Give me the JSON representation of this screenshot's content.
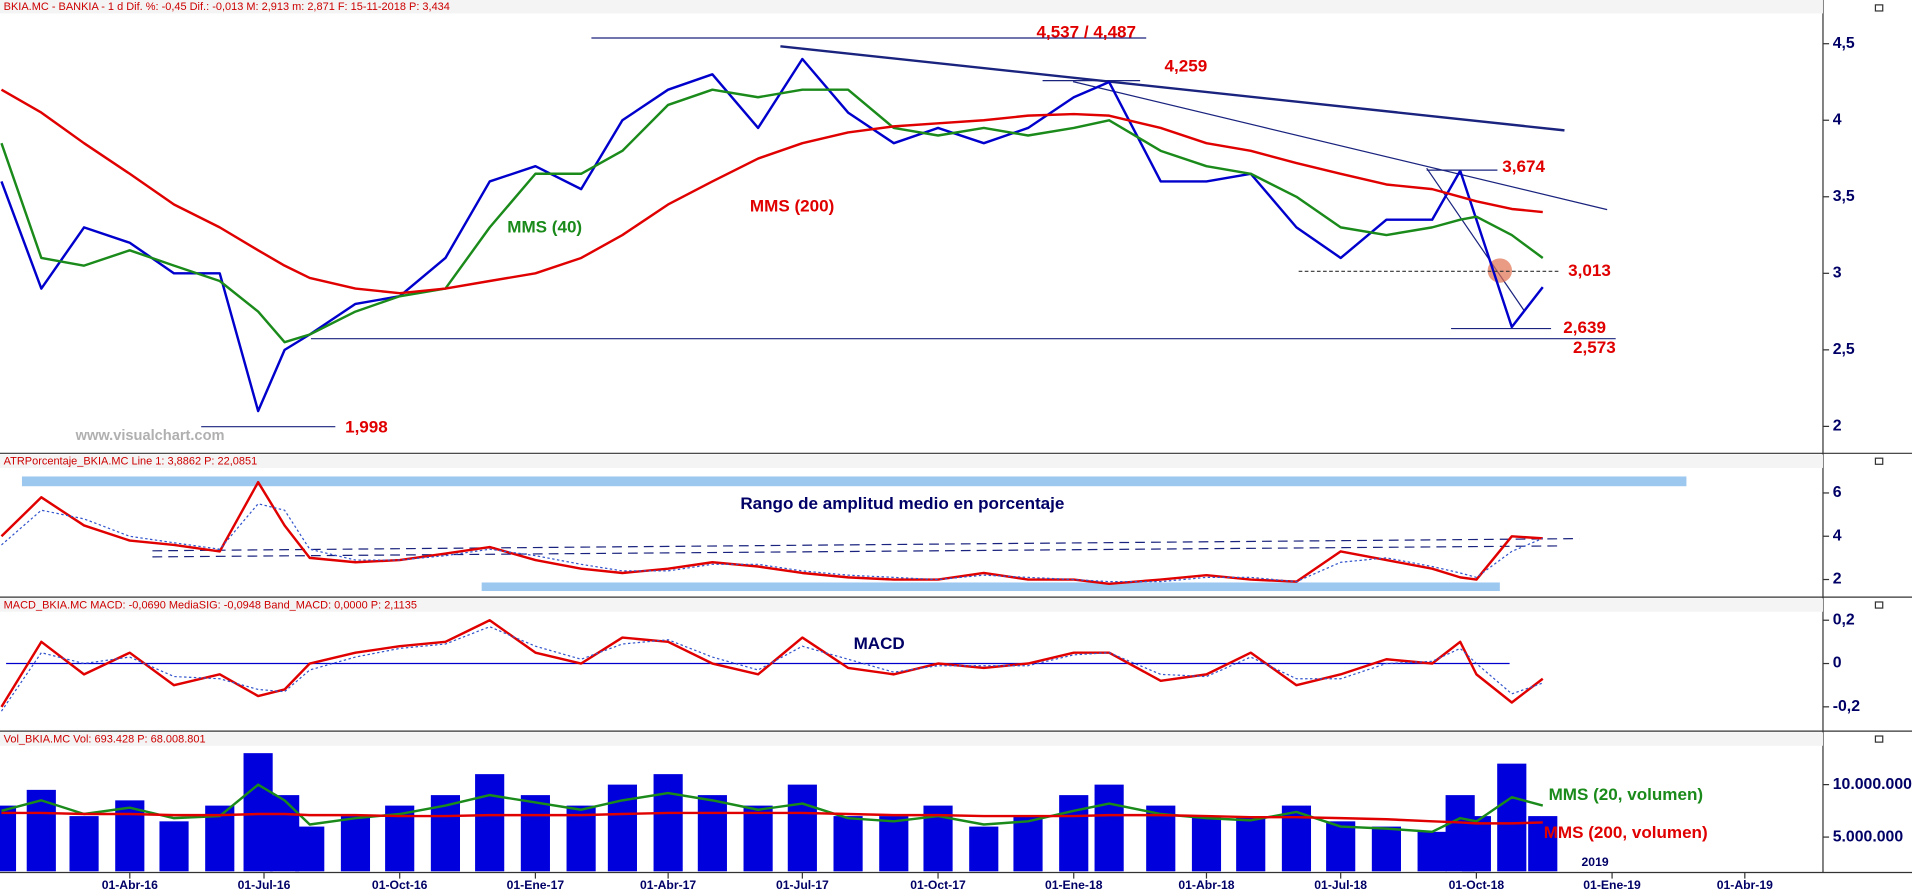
{
  "chart_data": [
    {
      "type": "line",
      "title": "BKIA.MC - BANKIA - 1 d  Dif. %: -0,45  Dif.: -0,013  M: 2,913  m: 2,871  F: 15-11-2018  P: 3,434",
      "watermark": "www.visualchart.com",
      "x": [
        "2016-01-05",
        "2016-02-01",
        "2016-03-01",
        "2016-04-01",
        "2016-05-01",
        "2016-06-01",
        "2016-06-27",
        "2016-07-15",
        "2016-08-01",
        "2016-09-01",
        "2016-10-01",
        "2016-11-01",
        "2016-12-01",
        "2017-01-01",
        "2017-02-01",
        "2017-03-01",
        "2017-04-01",
        "2017-05-01",
        "2017-06-01",
        "2017-07-01",
        "2017-08-01",
        "2017-09-01",
        "2017-10-01",
        "2017-11-01",
        "2017-12-01",
        "2018-01-01",
        "2018-01-25",
        "2018-03-01",
        "2018-04-01",
        "2018-05-01",
        "2018-06-01",
        "2018-07-01",
        "2018-08-01",
        "2018-09-01",
        "2018-09-20",
        "2018-10-01",
        "2018-10-25",
        "2018-11-15"
      ],
      "xlim": [
        "2016-01-04",
        "2019-05-24"
      ],
      "ylim": [
        1.84,
        4.69
      ],
      "yticks": [
        2,
        {
          "value": 2.5,
          "label": "2,5"
        },
        3,
        {
          "value": 3.5,
          "label": "3,5"
        },
        4,
        {
          "value": 4.5,
          "label": "4,5"
        }
      ],
      "series": [
        {
          "type": "line",
          "color": "#0000cc",
          "values": [
            3.6,
            2.9,
            3.3,
            3.2,
            3.0,
            3.0,
            2.1,
            2.5,
            2.6,
            2.8,
            2.85,
            3.1,
            3.6,
            3.7,
            3.55,
            4.0,
            4.2,
            4.3,
            3.95,
            4.4,
            4.05,
            3.85,
            3.95,
            3.85,
            3.95,
            4.15,
            4.25,
            3.6,
            3.6,
            3.65,
            3.3,
            3.1,
            3.35,
            3.35,
            3.67,
            3.35,
            2.65,
            2.91
          ]
        },
        {
          "type": "line",
          "name": "MMS (40)",
          "color": "#1a8a1a",
          "values": [
            3.85,
            3.1,
            3.05,
            3.15,
            3.05,
            2.95,
            2.75,
            2.55,
            2.6,
            2.75,
            2.85,
            2.9,
            3.3,
            3.65,
            3.65,
            3.8,
            4.1,
            4.2,
            4.15,
            4.2,
            4.2,
            3.95,
            3.9,
            3.95,
            3.9,
            3.95,
            4.0,
            3.8,
            3.7,
            3.65,
            3.5,
            3.3,
            3.25,
            3.3,
            3.35,
            3.37,
            3.25,
            3.1
          ]
        },
        {
          "type": "line",
          "name": "MMS (200)",
          "color": "#e00000",
          "values": [
            4.2,
            4.05,
            3.85,
            3.65,
            3.45,
            3.3,
            3.15,
            3.05,
            2.97,
            2.9,
            2.87,
            2.9,
            2.95,
            3.0,
            3.1,
            3.25,
            3.45,
            3.6,
            3.75,
            3.85,
            3.92,
            3.96,
            3.98,
            4.0,
            4.03,
            4.04,
            4.03,
            3.95,
            3.85,
            3.8,
            3.72,
            3.65,
            3.58,
            3.55,
            3.5,
            3.47,
            3.42,
            3.4
          ]
        }
      ],
      "levels": [
        {
          "value": 4.537,
          "label": "4,537 / 4,487"
        },
        {
          "value": 4.259,
          "label": "4,259"
        },
        {
          "value": 3.674,
          "label": "3,674"
        },
        {
          "value": 3.013,
          "label": "3,013"
        },
        {
          "value": 2.639,
          "label": "2,639"
        },
        {
          "value": 2.573,
          "label": "2,573"
        },
        {
          "value": 1.998,
          "label": "1,998"
        }
      ]
    },
    {
      "type": "line",
      "title": "ATRPorcentaje_BKIA.MC Line 1: 3,8862 P: 22,0851",
      "annotation": "Rango de amplitud medio en porcentaje",
      "x": [
        "2016-01-05",
        "2016-02-01",
        "2016-03-01",
        "2016-04-01",
        "2016-05-01",
        "2016-06-01",
        "2016-06-27",
        "2016-07-15",
        "2016-08-01",
        "2016-09-01",
        "2016-10-01",
        "2016-11-01",
        "2016-12-01",
        "2017-01-01",
        "2017-02-01",
        "2017-03-01",
        "2017-04-01",
        "2017-05-01",
        "2017-06-01",
        "2017-07-01",
        "2017-08-01",
        "2017-09-01",
        "2017-10-01",
        "2017-11-01",
        "2017-12-01",
        "2018-01-01",
        "2018-01-25",
        "2018-03-01",
        "2018-04-01",
        "2018-05-01",
        "2018-06-01",
        "2018-07-01",
        "2018-08-01",
        "2018-09-01",
        "2018-09-20",
        "2018-10-01",
        "2018-10-25",
        "2018-11-15"
      ],
      "xlim": [
        "2016-01-04",
        "2019-05-24"
      ],
      "ylim": [
        1.3,
        7.1
      ],
      "yticks": [
        2,
        4,
        6
      ],
      "series": [
        {
          "type": "line",
          "color": "#e00000",
          "values": [
            4.0,
            5.8,
            4.5,
            3.8,
            3.6,
            3.3,
            6.5,
            4.5,
            3.0,
            2.8,
            2.9,
            3.2,
            3.5,
            2.9,
            2.5,
            2.3,
            2.5,
            2.8,
            2.6,
            2.3,
            2.1,
            2.0,
            2.0,
            2.3,
            2.0,
            2.0,
            1.8,
            2.0,
            2.2,
            2.0,
            1.9,
            3.3,
            2.9,
            2.5,
            2.1,
            2.0,
            4.0,
            3.9
          ]
        },
        {
          "type": "line",
          "style": "dotted",
          "color": "#3355cc",
          "values": [
            3.6,
            5.2,
            4.8,
            4.0,
            3.7,
            3.4,
            5.5,
            5.2,
            3.4,
            2.9,
            2.9,
            3.1,
            3.4,
            3.1,
            2.7,
            2.4,
            2.4,
            2.7,
            2.7,
            2.4,
            2.2,
            2.1,
            2.0,
            2.2,
            2.1,
            2.0,
            1.9,
            1.9,
            2.1,
            2.1,
            1.9,
            2.8,
            3.0,
            2.6,
            2.3,
            2.1,
            3.3,
            3.9
          ]
        }
      ]
    },
    {
      "type": "line",
      "title": "MACD_BKIA.MC MACD: -0,0690 MediaSIG: -0,0948 Band_MACD: 0,0000 P: 2,1135",
      "annotation": "MACD",
      "x": [
        "2016-01-05",
        "2016-02-01",
        "2016-03-01",
        "2016-04-01",
        "2016-05-01",
        "2016-06-01",
        "2016-06-27",
        "2016-07-15",
        "2016-08-01",
        "2016-09-01",
        "2016-10-01",
        "2016-11-01",
        "2016-12-01",
        "2017-01-01",
        "2017-02-01",
        "2017-03-01",
        "2017-04-01",
        "2017-05-01",
        "2017-06-01",
        "2017-07-01",
        "2017-08-01",
        "2017-09-01",
        "2017-10-01",
        "2017-11-01",
        "2017-12-01",
        "2018-01-01",
        "2018-01-25",
        "2018-03-01",
        "2018-04-01",
        "2018-05-01",
        "2018-06-01",
        "2018-07-01",
        "2018-08-01",
        "2018-09-01",
        "2018-09-20",
        "2018-10-01",
        "2018-10-25",
        "2018-11-15"
      ],
      "xlim": [
        "2016-01-04",
        "2019-05-24"
      ],
      "ylim": [
        -0.301,
        0.273
      ],
      "yticks": [
        {
          "value": 0.2,
          "label": "0,2"
        },
        0,
        {
          "value": -0.2,
          "label": "-0,2"
        }
      ],
      "series": [
        {
          "type": "line",
          "color": "#e00000",
          "values": [
            -0.2,
            0.1,
            -0.05,
            0.05,
            -0.1,
            -0.05,
            -0.15,
            -0.12,
            0.0,
            0.05,
            0.08,
            0.1,
            0.2,
            0.05,
            0.0,
            0.12,
            0.1,
            0.0,
            -0.05,
            0.12,
            -0.02,
            -0.05,
            0.0,
            -0.02,
            0.0,
            0.05,
            0.05,
            -0.08,
            -0.05,
            0.05,
            -0.1,
            -0.05,
            0.02,
            0.0,
            0.1,
            -0.05,
            -0.18,
            -0.07
          ]
        },
        {
          "type": "line",
          "style": "dotted",
          "color": "#3355cc",
          "values": [
            -0.22,
            0.05,
            0.0,
            0.03,
            -0.06,
            -0.07,
            -0.12,
            -0.13,
            -0.03,
            0.03,
            0.07,
            0.09,
            0.17,
            0.08,
            0.02,
            0.09,
            0.11,
            0.03,
            -0.03,
            0.08,
            0.02,
            -0.04,
            -0.01,
            -0.01,
            -0.01,
            0.04,
            0.05,
            -0.05,
            -0.06,
            0.03,
            -0.07,
            -0.07,
            0.0,
            0.01,
            0.07,
            0.0,
            -0.14,
            -0.09
          ]
        }
      ]
    },
    {
      "type": "bar",
      "title": "Vol_BKIA.MC Vol: 693.428 P: 68.008.801",
      "year_label": "2019",
      "x": [
        "2016-01-05",
        "2016-02-01",
        "2016-03-01",
        "2016-04-01",
        "2016-05-01",
        "2016-06-01",
        "2016-06-27",
        "2016-07-15",
        "2016-08-01",
        "2016-09-01",
        "2016-10-01",
        "2016-11-01",
        "2016-12-01",
        "2017-01-01",
        "2017-02-01",
        "2017-03-01",
        "2017-04-01",
        "2017-05-01",
        "2017-06-01",
        "2017-07-01",
        "2017-08-01",
        "2017-09-01",
        "2017-10-01",
        "2017-11-01",
        "2017-12-01",
        "2018-01-01",
        "2018-01-25",
        "2018-03-01",
        "2018-04-01",
        "2018-05-01",
        "2018-06-01",
        "2018-07-01",
        "2018-08-01",
        "2018-09-01",
        "2018-09-20",
        "2018-10-01",
        "2018-10-25",
        "2018-11-15"
      ],
      "xlim": [
        "2016-01-04",
        "2019-05-24"
      ],
      "xticks": [
        {
          "value": "2016-04-01",
          "label": "01-Abr-16"
        },
        {
          "value": "2016-07-01",
          "label": "01-Jul-16"
        },
        {
          "value": "2016-10-01",
          "label": "01-Oct-16"
        },
        {
          "value": "2017-01-01",
          "label": "01-Ene-17"
        },
        {
          "value": "2017-04-01",
          "label": "01-Abr-17"
        },
        {
          "value": "2017-07-01",
          "label": "01-Jul-17"
        },
        {
          "value": "2017-10-01",
          "label": "01-Oct-17"
        },
        {
          "value": "2018-01-01",
          "label": "01-Ene-18"
        },
        {
          "value": "2018-04-01",
          "label": "01-Abr-18"
        },
        {
          "value": "2018-07-01",
          "label": "01-Jul-18"
        },
        {
          "value": "2018-10-01",
          "label": "01-Oct-18"
        },
        {
          "value": "2019-01-01",
          "label": "01-Ene-19"
        },
        {
          "value": "2019-04-01",
          "label": "01-Abr-19"
        }
      ],
      "ylim": [
        1740000,
        14400000
      ],
      "yticks": [
        {
          "value": 5000000,
          "label": "5.000.000"
        },
        {
          "value": 10000000,
          "label": "10.000.000"
        }
      ],
      "series": [
        {
          "type": "bar",
          "color": "#0000dd",
          "values": [
            8000000,
            9500000,
            7000000,
            8500000,
            6500000,
            8000000,
            13000000,
            9000000,
            6000000,
            7000000,
            8000000,
            9000000,
            11000000,
            9000000,
            8000000,
            10000000,
            11000000,
            9000000,
            8000000,
            10000000,
            7000000,
            7000000,
            8000000,
            6000000,
            7000000,
            9000000,
            10000000,
            8000000,
            7000000,
            7000000,
            8000000,
            6500000,
            6000000,
            5500000,
            9000000,
            7000000,
            12000000,
            7000000
          ]
        },
        {
          "type": "line",
          "name": "MMS (20, volumen)",
          "color": "#1a8a1a",
          "values": [
            7500000,
            8500000,
            7200000,
            7800000,
            6800000,
            7000000,
            10000000,
            8500000,
            6200000,
            6800000,
            7200000,
            8000000,
            9000000,
            8300000,
            7600000,
            8500000,
            9200000,
            8500000,
            7600000,
            8200000,
            6800000,
            6500000,
            7000000,
            6200000,
            6500000,
            7500000,
            8200000,
            7200000,
            6800000,
            6600000,
            7400000,
            6000000,
            5800000,
            5500000,
            6800000,
            6500000,
            8800000,
            8000000
          ]
        },
        {
          "type": "line",
          "name": "MMS (200, volumen)",
          "color": "#e00000",
          "values": [
            7300000,
            7300000,
            7200000,
            7200000,
            7100000,
            7100000,
            7200000,
            7200000,
            7100000,
            7100000,
            7000000,
            7000000,
            7100000,
            7100000,
            7100000,
            7200000,
            7300000,
            7300000,
            7300000,
            7300000,
            7200000,
            7100000,
            7100000,
            7000000,
            7000000,
            7000000,
            7100000,
            7100000,
            7000000,
            6900000,
            6900000,
            6800000,
            6700000,
            6500000,
            6400000,
            6300000,
            6300000,
            6400000
          ]
        }
      ]
    }
  ]
}
